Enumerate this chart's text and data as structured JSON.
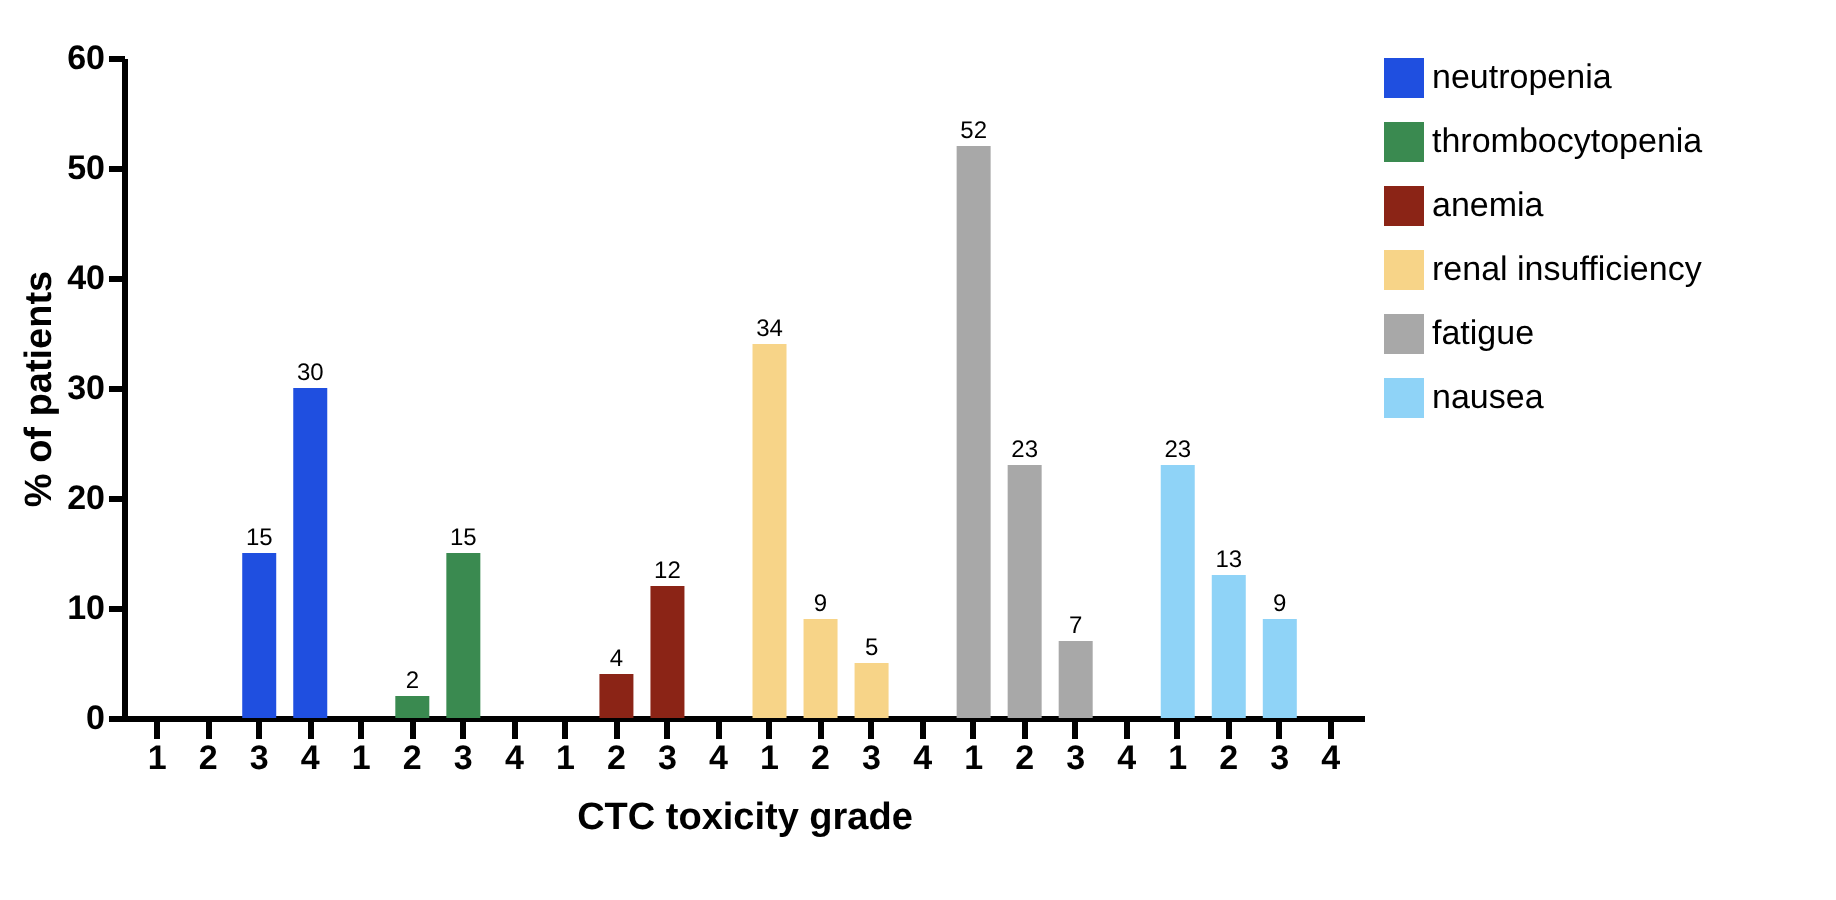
{
  "chart_data": {
    "type": "bar",
    "xlabel": "CTC toxicity grade",
    "ylabel": "% of patients",
    "categories": [
      "1",
      "2",
      "3",
      "4",
      "1",
      "2",
      "3",
      "4",
      "1",
      "2",
      "3",
      "4",
      "1",
      "2",
      "3",
      "4",
      "1",
      "2",
      "3",
      "4",
      "1",
      "2",
      "3",
      "4"
    ],
    "series": [
      {
        "name": "neutropenia",
        "color": "#1f4fe0",
        "values": [
          null,
          null,
          15,
          30,
          null,
          null,
          null,
          null,
          null,
          null,
          null,
          null,
          null,
          null,
          null,
          null,
          null,
          null,
          null,
          null,
          null,
          null,
          null,
          null
        ]
      },
      {
        "name": "thrombocytopenia",
        "color": "#3a8a50",
        "values": [
          null,
          null,
          null,
          null,
          null,
          2,
          15,
          null,
          null,
          null,
          null,
          null,
          null,
          null,
          null,
          null,
          null,
          null,
          null,
          null,
          null,
          null,
          null,
          null
        ]
      },
      {
        "name": "anemia",
        "color": "#8b2416",
        "values": [
          null,
          null,
          null,
          null,
          null,
          null,
          null,
          null,
          null,
          4,
          12,
          null,
          null,
          null,
          null,
          null,
          null,
          null,
          null,
          null,
          null,
          null,
          null,
          null
        ]
      },
      {
        "name": "renal insufficiency",
        "color": "#f7d488",
        "values": [
          null,
          null,
          null,
          null,
          null,
          null,
          null,
          null,
          null,
          null,
          null,
          null,
          34,
          9,
          5,
          null,
          null,
          null,
          null,
          null,
          null,
          null,
          null,
          null
        ]
      },
      {
        "name": "fatigue",
        "color": "#a8a8a8",
        "values": [
          null,
          null,
          null,
          null,
          null,
          null,
          null,
          null,
          null,
          null,
          null,
          null,
          null,
          null,
          null,
          null,
          52,
          23,
          7,
          null,
          null,
          null,
          null,
          null
        ]
      },
      {
        "name": "nausea",
        "color": "#8fd3f7",
        "values": [
          null,
          null,
          null,
          null,
          null,
          null,
          null,
          null,
          null,
          null,
          null,
          null,
          null,
          null,
          null,
          null,
          null,
          null,
          null,
          null,
          23,
          13,
          9,
          null
        ]
      }
    ],
    "ylim": [
      0,
      60
    ],
    "yticks": [
      0,
      10,
      20,
      30,
      40,
      50,
      60
    ],
    "grid": false,
    "legend": "top right",
    "data_labels": true
  }
}
